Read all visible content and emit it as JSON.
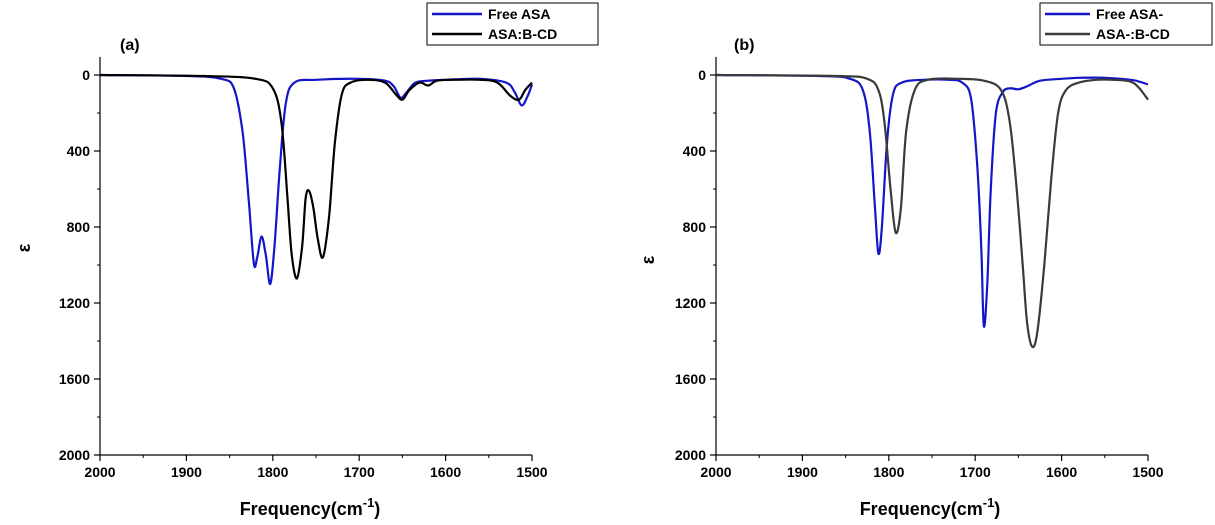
{
  "chart_data": [
    {
      "type": "line",
      "panel_label": "(a)",
      "xlabel": "Frequency(cm",
      "xlabel_sup": "-1",
      "xlabel_close": ")",
      "ylabel": "ε",
      "xlim": [
        2000,
        1500
      ],
      "ylim": [
        2000,
        0
      ],
      "x_ticks": [
        "2000",
        "1900",
        "1800",
        "1700",
        "1600",
        "1500"
      ],
      "y_ticks": [
        "0",
        "400",
        "800",
        "1200",
        "1600",
        "2000"
      ],
      "legend_position": "top-right",
      "series": [
        {
          "name": "Free ASA",
          "color": "#1515c8",
          "points": [
            [
              2000,
              0
            ],
            [
              1900,
              5
            ],
            [
              1860,
              20
            ],
            [
              1845,
              70
            ],
            [
              1835,
              300
            ],
            [
              1828,
              650
            ],
            [
              1822,
              990
            ],
            [
              1818,
              960
            ],
            [
              1813,
              850
            ],
            [
              1808,
              950
            ],
            [
              1803,
              1100
            ],
            [
              1798,
              900
            ],
            [
              1792,
              500
            ],
            [
              1785,
              150
            ],
            [
              1775,
              40
            ],
            [
              1750,
              25
            ],
            [
              1700,
              20
            ],
            [
              1670,
              30
            ],
            [
              1660,
              60
            ],
            [
              1652,
              120
            ],
            [
              1645,
              90
            ],
            [
              1635,
              40
            ],
            [
              1620,
              30
            ],
            [
              1600,
              25
            ],
            [
              1560,
              20
            ],
            [
              1530,
              40
            ],
            [
              1520,
              90
            ],
            [
              1512,
              160
            ],
            [
              1505,
              110
            ],
            [
              1500,
              50
            ]
          ]
        },
        {
          "name": "ASA:B-CD",
          "color": "#000000",
          "points": [
            [
              2000,
              0
            ],
            [
              1880,
              5
            ],
            [
              1820,
              20
            ],
            [
              1800,
              70
            ],
            [
              1790,
              250
            ],
            [
              1783,
              650
            ],
            [
              1778,
              950
            ],
            [
              1772,
              1070
            ],
            [
              1766,
              900
            ],
            [
              1762,
              650
            ],
            [
              1758,
              610
            ],
            [
              1753,
              700
            ],
            [
              1748,
              860
            ],
            [
              1742,
              960
            ],
            [
              1735,
              750
            ],
            [
              1728,
              350
            ],
            [
              1720,
              100
            ],
            [
              1710,
              40
            ],
            [
              1690,
              25
            ],
            [
              1670,
              40
            ],
            [
              1658,
              100
            ],
            [
              1650,
              130
            ],
            [
              1642,
              80
            ],
            [
              1630,
              40
            ],
            [
              1620,
              55
            ],
            [
              1610,
              30
            ],
            [
              1590,
              25
            ],
            [
              1560,
              25
            ],
            [
              1540,
              40
            ],
            [
              1525,
              110
            ],
            [
              1515,
              130
            ],
            [
              1508,
              80
            ],
            [
              1500,
              40
            ]
          ]
        }
      ]
    },
    {
      "type": "line",
      "panel_label": "(b)",
      "xlabel": "Frequency(cm",
      "xlabel_sup": "-1",
      "xlabel_close": ")",
      "ylabel": "ε",
      "xlim": [
        2000,
        1500
      ],
      "ylim": [
        2000,
        0
      ],
      "x_ticks": [
        "2000",
        "1900",
        "1800",
        "1700",
        "1600",
        "1500"
      ],
      "y_ticks": [
        "0",
        "400",
        "800",
        "1200",
        "1600",
        "2000"
      ],
      "legend_position": "top-right",
      "series": [
        {
          "name": "Free ASA-",
          "color": "#1515c8",
          "points": [
            [
              2000,
              0
            ],
            [
              1880,
              5
            ],
            [
              1845,
              20
            ],
            [
              1830,
              80
            ],
            [
              1822,
              300
            ],
            [
              1816,
              700
            ],
            [
              1812,
              940
            ],
            [
              1808,
              800
            ],
            [
              1802,
              350
            ],
            [
              1795,
              100
            ],
            [
              1785,
              40
            ],
            [
              1760,
              25
            ],
            [
              1730,
              25
            ],
            [
              1715,
              40
            ],
            [
              1705,
              120
            ],
            [
              1698,
              450
            ],
            [
              1693,
              900
            ],
            [
              1690,
              1320
            ],
            [
              1686,
              1100
            ],
            [
              1682,
              600
            ],
            [
              1676,
              200
            ],
            [
              1668,
              90
            ],
            [
              1660,
              70
            ],
            [
              1650,
              75
            ],
            [
              1640,
              60
            ],
            [
              1625,
              30
            ],
            [
              1600,
              20
            ],
            [
              1580,
              15
            ],
            [
              1550,
              15
            ],
            [
              1520,
              25
            ],
            [
              1510,
              35
            ],
            [
              1500,
              50
            ]
          ]
        },
        {
          "name": "ASA-:B-CD",
          "color": "#3a3a3a",
          "points": [
            [
              2000,
              0
            ],
            [
              1860,
              5
            ],
            [
              1825,
              20
            ],
            [
              1812,
              80
            ],
            [
              1805,
              250
            ],
            [
              1798,
              600
            ],
            [
              1792,
              830
            ],
            [
              1786,
              700
            ],
            [
              1780,
              300
            ],
            [
              1770,
              80
            ],
            [
              1755,
              25
            ],
            [
              1720,
              20
            ],
            [
              1690,
              30
            ],
            [
              1670,
              80
            ],
            [
              1660,
              250
            ],
            [
              1652,
              600
            ],
            [
              1645,
              1000
            ],
            [
              1640,
              1300
            ],
            [
              1634,
              1430
            ],
            [
              1628,
              1350
            ],
            [
              1620,
              1000
            ],
            [
              1612,
              550
            ],
            [
              1604,
              200
            ],
            [
              1595,
              80
            ],
            [
              1580,
              40
            ],
            [
              1560,
              25
            ],
            [
              1540,
              25
            ],
            [
              1520,
              35
            ],
            [
              1510,
              70
            ],
            [
              1500,
              130
            ]
          ]
        }
      ]
    }
  ]
}
